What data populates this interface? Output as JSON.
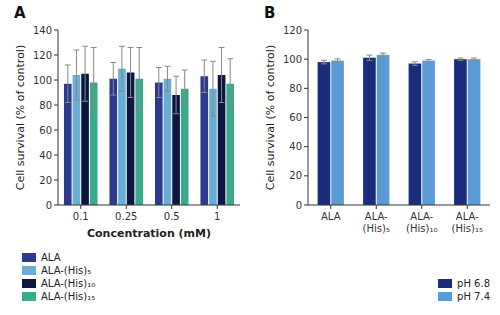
{
  "chart_data": [
    {
      "type": "bar",
      "title": "A",
      "xlabel": "Concentration (mM)",
      "ylabel": "Cell survival (% of control)",
      "categories": [
        "0.1",
        "0.25",
        "0.5",
        "1"
      ],
      "series": [
        {
          "name": "ALA",
          "color": "#2b3a8c",
          "values": [
            97,
            101,
            98,
            103
          ],
          "errors": [
            15,
            13,
            12,
            13
          ]
        },
        {
          "name": "ALA-(His)₅",
          "color": "#6aaed6",
          "values": [
            104,
            109,
            101,
            93
          ],
          "errors": [
            20,
            18,
            10,
            22
          ]
        },
        {
          "name": "ALA-(His)₁₀",
          "color": "#0d1640",
          "values": [
            105,
            106,
            88,
            104
          ],
          "errors": [
            22,
            20,
            15,
            22
          ]
        },
        {
          "name": "ALA-(His)₁₅",
          "color": "#3aaa8a",
          "values": [
            98,
            101,
            93,
            97
          ],
          "errors": [
            28,
            25,
            15,
            20
          ]
        }
      ],
      "ylim": [
        0,
        140
      ],
      "yticks": [
        0,
        20,
        40,
        60,
        80,
        100,
        120,
        140
      ],
      "grid": false,
      "legend": "lower left"
    },
    {
      "type": "bar",
      "title": "B",
      "ylabel": "Cell survival (% of control)",
      "categories": [
        "ALA",
        "ALA-\n(His)₅",
        "ALA-\n(His)₁₀",
        "ALA-\n(His)₁₅"
      ],
      "series": [
        {
          "name": "pH 6.8",
          "color": "#1a2d7c",
          "values": [
            98,
            101,
            97,
            100
          ],
          "errors": [
            1.2,
            1.8,
            1.2,
            0.8
          ]
        },
        {
          "name": "pH 7.4",
          "color": "#5b9bd5",
          "values": [
            99,
            103,
            99,
            100
          ],
          "errors": [
            1.2,
            1.2,
            0.8,
            0.8
          ]
        }
      ],
      "ylim": [
        0,
        120
      ],
      "yticks": [
        0,
        20,
        40,
        60,
        80,
        100,
        120
      ],
      "grid": false,
      "legend": "lower right"
    }
  ]
}
